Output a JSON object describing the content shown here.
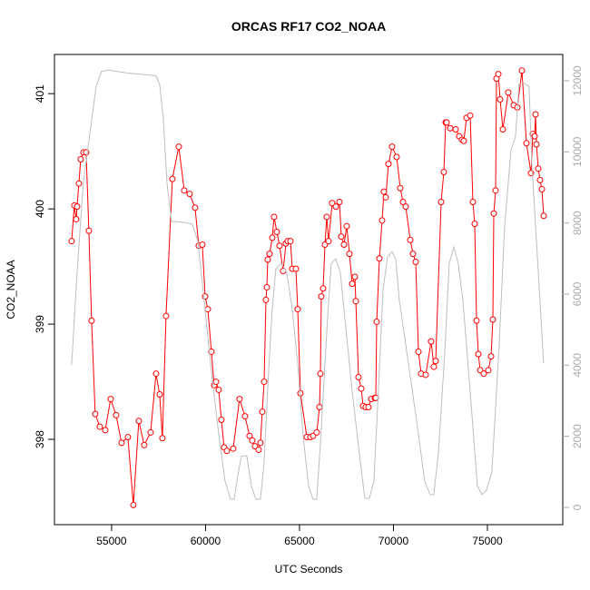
{
  "chart_data": {
    "type": "line",
    "title": "ORCAS RF17 CO2_NOAA",
    "x_label": "UTC Seconds",
    "y_label": "CO2_NOAA",
    "xlim": [
      51960,
      79010
    ],
    "ylim": [
      397.26,
      401.34
    ],
    "y2lim": [
      -485,
      12740
    ],
    "xticks": [
      55000,
      60000,
      65000,
      70000,
      75000
    ],
    "yticks": [
      398,
      399,
      400,
      401
    ],
    "y2ticks": [
      0,
      2000,
      4000,
      6000,
      8000,
      10000,
      12000
    ],
    "series": [
      {
        "color": "#ff0000",
        "markers": true,
        "x": [
          52875,
          53020,
          53116,
          53165,
          53261,
          53358,
          53502,
          53648,
          53792,
          53937,
          54130,
          54372,
          54662,
          54952,
          55242,
          55531,
          55869,
          56159,
          56449,
          56739,
          57077,
          57367,
          57560,
          57705,
          57898,
          58236,
          58575,
          58865,
          59154,
          59444,
          59638,
          59831,
          59976,
          60121,
          60314,
          60459,
          60556,
          60700,
          60845,
          60990,
          61135,
          61473,
          61811,
          62101,
          62343,
          62488,
          62633,
          62826,
          62923,
          63019,
          63116,
          63213,
          63261,
          63309,
          63406,
          63551,
          63647,
          63792,
          63937,
          64130,
          64275,
          64372,
          64517,
          64614,
          64807,
          64904,
          65048,
          65386,
          65580,
          65725,
          65918,
          66063,
          66111,
          66159,
          66256,
          66353,
          66449,
          66546,
          66739,
          66932,
          67126,
          67222,
          67367,
          67512,
          67657,
          67802,
          67947,
          67995,
          68140,
          68285,
          68382,
          68527,
          68672,
          68816,
          69010,
          69058,
          69106,
          69251,
          69396,
          69493,
          69589,
          69734,
          69927,
          70169,
          70362,
          70507,
          70652,
          70894,
          71039,
          71184,
          71329,
          71473,
          71715,
          72005,
          72150,
          72246,
          72536,
          72681,
          72778,
          72826,
          73019,
          73309,
          73502,
          73647,
          73744,
          73889,
          74082,
          74227,
          74324,
          74420,
          74517,
          74614,
          74807,
          75048,
          75193,
          75290,
          75338,
          75435,
          75483,
          75580,
          75676,
          75821,
          76111,
          76401,
          76594,
          76836,
          77077,
          77319,
          77415,
          77512,
          77560,
          77608,
          77705,
          77802,
          77898,
          77995
        ],
        "values": [
          399.72,
          400.03,
          399.91,
          400.02,
          400.22,
          400.43,
          400.49,
          400.49,
          399.81,
          399.03,
          398.22,
          398.11,
          398.08,
          398.35,
          398.21,
          397.97,
          398.02,
          397.43,
          398.16,
          397.95,
          398.06,
          398.57,
          398.39,
          398.01,
          399.07,
          400.26,
          400.54,
          400.16,
          400.13,
          400.01,
          399.68,
          399.69,
          399.24,
          399.13,
          398.76,
          398.47,
          398.5,
          398.43,
          398.17,
          397.93,
          397.9,
          397.92,
          398.35,
          398.2,
          398.03,
          397.99,
          397.94,
          397.91,
          397.97,
          398.24,
          398.5,
          399.21,
          399.32,
          399.56,
          399.61,
          399.75,
          399.93,
          399.8,
          399.68,
          399.46,
          399.7,
          399.72,
          399.72,
          399.48,
          399.48,
          399.13,
          398.4,
          398.02,
          398.02,
          398.03,
          398.06,
          398.28,
          398.57,
          399.24,
          399.31,
          399.69,
          399.93,
          399.72,
          400.05,
          400.02,
          400.06,
          399.76,
          399.69,
          399.85,
          399.61,
          399.35,
          399.41,
          399.2,
          398.54,
          398.44,
          398.29,
          398.28,
          398.28,
          398.35,
          398.36,
          398.36,
          399.02,
          399.57,
          399.9,
          400.15,
          400.1,
          400.39,
          400.54,
          400.45,
          400.18,
          400.06,
          400.02,
          399.73,
          399.61,
          399.54,
          398.76,
          398.57,
          398.56,
          398.85,
          398.63,
          398.68,
          400.06,
          400.32,
          400.75,
          400.75,
          400.7,
          400.69,
          400.63,
          400.6,
          400.59,
          400.79,
          400.81,
          400.06,
          399.87,
          399.03,
          398.74,
          398.6,
          398.57,
          398.6,
          398.72,
          399.04,
          399.96,
          400.16,
          401.13,
          401.17,
          400.95,
          400.69,
          401.01,
          400.9,
          400.88,
          401.2,
          400.57,
          400.31,
          400.65,
          400.63,
          400.82,
          400.56,
          400.35,
          400.25,
          400.17,
          399.94
        ]
      },
      {
        "color": "#bebebe",
        "axis": "y2",
        "markers": false,
        "x": [
          52875,
          53165,
          53502,
          53889,
          54179,
          54469,
          54855,
          55821,
          56787,
          57367,
          57560,
          57753,
          57946,
          58188,
          58478,
          58961,
          59299,
          59589,
          59927,
          60265,
          60651,
          61038,
          61327,
          61521,
          61714,
          61907,
          62197,
          62438,
          62680,
          62921,
          63114,
          63356,
          63549,
          63742,
          64032,
          64322,
          64612,
          64902,
          65191,
          65481,
          65723,
          65916,
          66109,
          66302,
          66495,
          66689,
          66930,
          67172,
          67413,
          67800,
          68186,
          68476,
          68717,
          68959,
          69200,
          69442,
          69683,
          69925,
          70118,
          70311,
          70794,
          71277,
          71664,
          71953,
          72147,
          72388,
          72726,
          72968,
          73209,
          73451,
          73692,
          74079,
          74465,
          74707,
          74948,
          75238,
          75624,
          75914,
          76252,
          76494,
          76687,
          76880,
          77218,
          77363,
          77653,
          77991
        ],
        "values": [
          4000,
          6600,
          9160,
          10690,
          11840,
          12270,
          12300,
          12220,
          12170,
          12140,
          11890,
          10940,
          9160,
          8040,
          8040,
          8010,
          7960,
          7500,
          5840,
          4060,
          2270,
          740,
          230,
          230,
          870,
          1450,
          1450,
          610,
          230,
          230,
          1250,
          3800,
          5590,
          6710,
          6860,
          6610,
          5590,
          4060,
          2020,
          610,
          230,
          230,
          1760,
          3550,
          5330,
          6860,
          6990,
          6610,
          5330,
          3290,
          1510,
          255,
          255,
          740,
          3290,
          6100,
          7040,
          7190,
          6990,
          5840,
          4060,
          2270,
          740,
          360,
          360,
          1510,
          4310,
          6860,
          7320,
          6860,
          5840,
          3290,
          610,
          360,
          485,
          995,
          4570,
          7880,
          10050,
          10430,
          11910,
          11960,
          11840,
          9670,
          7120,
          4060
        ]
      }
    ]
  }
}
